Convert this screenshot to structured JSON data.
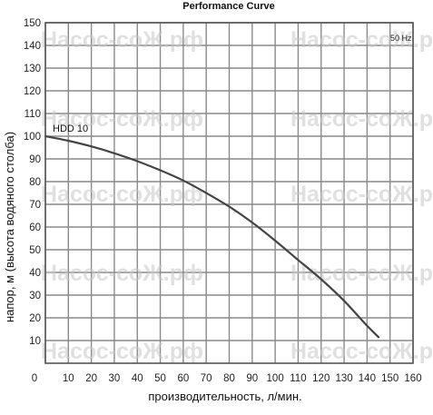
{
  "chart_data": {
    "type": "line",
    "title": "Performance Curve",
    "xlabel": "производительность, л/мин.",
    "ylabel": "напор, м (высота водяного столба)",
    "xlim": [
      0,
      160
    ],
    "ylim": [
      0,
      150
    ],
    "x_ticks": [
      0,
      10,
      20,
      30,
      40,
      50,
      60,
      70,
      80,
      90,
      100,
      110,
      120,
      130,
      140,
      150,
      160
    ],
    "y_ticks": [
      10,
      20,
      30,
      40,
      50,
      60,
      70,
      80,
      90,
      100,
      110,
      120,
      130,
      140,
      150
    ],
    "grid": true,
    "frequency_label": "50 Hz",
    "watermark": "Насос-соЖ.рф",
    "series": [
      {
        "name": "HDD 10",
        "color": "#444444",
        "x": [
          0,
          10,
          20,
          30,
          40,
          50,
          60,
          70,
          80,
          90,
          100,
          110,
          120,
          130,
          140,
          145
        ],
        "y": [
          100,
          98,
          95.5,
          92.5,
          89,
          85,
          80.5,
          75,
          69,
          62,
          54,
          45.5,
          37,
          27.5,
          16.5,
          11.5
        ]
      }
    ]
  }
}
